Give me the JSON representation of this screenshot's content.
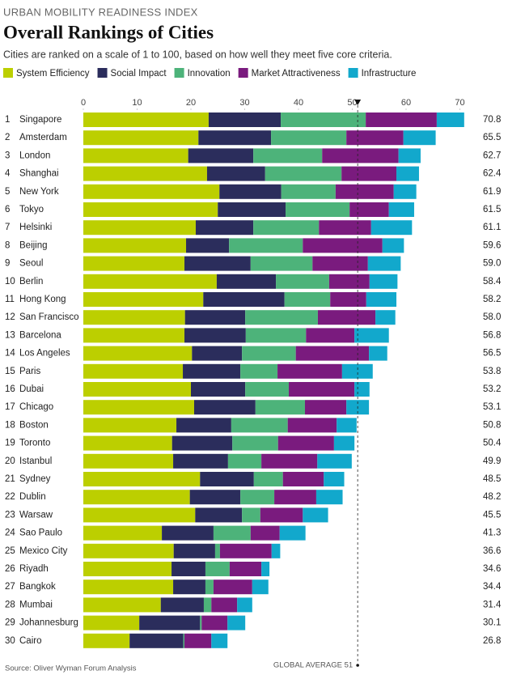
{
  "chart_data": {
    "type": "stacked-bar-horizontal",
    "kicker": "URBAN MOBILITY READINESS INDEX",
    "title": "Overall Rankings of Cities",
    "subtitle": "Cities are ranked on a scale of 1 to 100, based on how well they meet five core criteria.",
    "source": "Source: Oliver Wyman Forum Analysis",
    "average": {
      "value": 51,
      "label": "GLOBAL AVERAGE 51"
    },
    "ranks": [
      1,
      2,
      3,
      4,
      5,
      6,
      7,
      8,
      9,
      10,
      11,
      12,
      13,
      14,
      15,
      16,
      17,
      18,
      19,
      20,
      21,
      22,
      23,
      24,
      25,
      26,
      27,
      28,
      29,
      30
    ],
    "categories": [
      "Singapore",
      "Amsterdam",
      "London",
      "Shanghai",
      "New York",
      "Tokyo",
      "Helsinki",
      "Beijing",
      "Seoul",
      "Berlin",
      "Hong Kong",
      "San Francisco",
      "Barcelona",
      "Los Angeles",
      "Paris",
      "Dubai",
      "Chicago",
      "Boston",
      "Toronto",
      "Istanbul",
      "Sydney",
      "Dublin",
      "Warsaw",
      "Sao Paulo",
      "Mexico City",
      "Riyadh",
      "Bangkok",
      "Mumbai",
      "Johannesburg",
      "Cairo"
    ],
    "totals": [
      "70.8",
      "65.5",
      "62.7",
      "62.4",
      "61.9",
      "61.5",
      "61.1",
      "59.6",
      "59.0",
      "58.4",
      "58.2",
      "58.0",
      "56.8",
      "56.5",
      "53.8",
      "53.2",
      "53.1",
      "50.8",
      "50.4",
      "49.9",
      "48.5",
      "48.2",
      "45.5",
      "41.3",
      "36.6",
      "34.6",
      "34.4",
      "31.4",
      "30.1",
      "26.8"
    ],
    "series": [
      {
        "name": "System Efficiency",
        "color": "#bccf00",
        "values": [
          23.3,
          21.4,
          19.5,
          23.0,
          25.3,
          25.0,
          20.9,
          19.1,
          18.8,
          24.8,
          22.3,
          18.9,
          18.8,
          20.2,
          18.5,
          20.0,
          20.6,
          17.3,
          16.5,
          16.7,
          21.7,
          19.8,
          20.8,
          14.6,
          16.8,
          16.4,
          16.7,
          14.4,
          10.4,
          8.6
        ]
      },
      {
        "name": "Social Impact",
        "color": "#2b2d5c",
        "values": [
          13.4,
          13.5,
          12.1,
          10.8,
          11.5,
          12.6,
          10.7,
          8.0,
          12.3,
          11.0,
          15.1,
          11.2,
          11.4,
          9.3,
          10.7,
          10.1,
          11.4,
          10.2,
          11.2,
          10.2,
          10.0,
          9.4,
          8.7,
          9.6,
          7.7,
          6.3,
          6.0,
          8.0,
          11.3,
          10.0
        ]
      },
      {
        "name": "Innovation",
        "color": "#4db37a",
        "values": [
          15.8,
          14.0,
          12.8,
          14.2,
          10.1,
          11.9,
          12.2,
          13.7,
          11.5,
          9.9,
          8.5,
          13.5,
          11.2,
          10.0,
          6.9,
          8.1,
          9.2,
          10.5,
          8.5,
          6.2,
          5.4,
          6.3,
          3.4,
          6.9,
          0.9,
          4.5,
          1.5,
          1.4,
          0.3,
          0.2
        ]
      },
      {
        "name": "Market Attractiveness",
        "color": "#7a1b7e",
        "values": [
          13.2,
          10.6,
          14.2,
          10.2,
          10.8,
          7.3,
          9.7,
          14.8,
          10.3,
          7.5,
          6.7,
          10.7,
          9.0,
          13.6,
          12.0,
          12.2,
          7.7,
          9.1,
          10.4,
          10.4,
          7.6,
          7.8,
          7.9,
          5.4,
          9.6,
          5.9,
          7.2,
          4.8,
          4.8,
          5.0
        ]
      },
      {
        "name": "Infrastructure",
        "color": "#12a8cc",
        "values": [
          5.1,
          6.0,
          4.1,
          4.2,
          4.2,
          4.7,
          7.6,
          4.0,
          6.1,
          5.2,
          5.6,
          3.7,
          6.4,
          3.4,
          5.7,
          2.8,
          4.2,
          3.7,
          3.8,
          6.4,
          3.8,
          4.9,
          4.7,
          4.8,
          1.6,
          1.5,
          3.0,
          2.8,
          3.3,
          3.0
        ]
      }
    ],
    "xlim": [
      0,
      80
    ],
    "xticks": [
      0,
      10,
      20,
      30,
      40,
      50,
      60,
      70
    ]
  }
}
